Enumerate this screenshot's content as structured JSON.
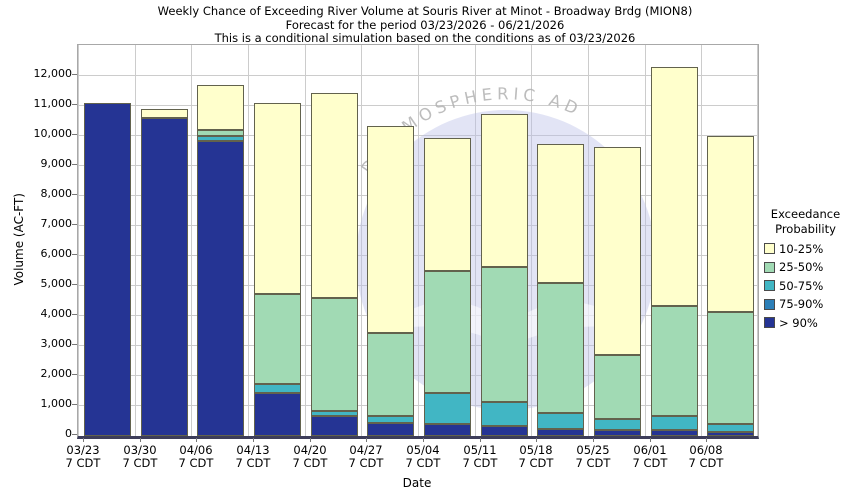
{
  "watermark": {
    "arc_text": "D ATMOSPHERIC AD",
    "circle_color": "#b9bfe8",
    "text_color": "#b2b2b2"
  },
  "chart_data": {
    "type": "bar",
    "stacked": true,
    "title": "Weekly Chance of Exceeding River Volume at Souris River at Minot - Broadway Brdg (MION8)",
    "subtitle": "Forecast for the period 03/23/2026 - 06/21/2026",
    "note": "This is a conditional simulation based on the conditions as of 03/23/2026",
    "xlabel": "Date",
    "ylabel": "Volume (AC-FT)",
    "ylim": [
      0,
      13030
    ],
    "ytick_step": 1000,
    "ytick_max": 12000,
    "grid": true,
    "legend_title_lines": [
      "Exceedance",
      "Probability"
    ],
    "legend_position": "right",
    "categories": [
      "03/23",
      "03/30",
      "04/06",
      "04/13",
      "04/20",
      "04/27",
      "05/04",
      "05/11",
      "05/18",
      "05/25",
      "06/01",
      "06/08"
    ],
    "category_sublabel": "7 CDT",
    "series": [
      {
        "name": "> 90%",
        "color": "#253494",
        "values": [
          11100,
          10600,
          9850,
          1450,
          680,
          420,
          400,
          320,
          230,
          190,
          200,
          120
        ]
      },
      {
        "name": "75-90%",
        "color": "#2c7fb8",
        "values": [
          0,
          0,
          0,
          0,
          0,
          0,
          0,
          0,
          0,
          0,
          0,
          0
        ]
      },
      {
        "name": "50-75%",
        "color": "#41b6c4",
        "values": [
          0,
          0,
          150,
          300,
          140,
          250,
          1050,
          830,
          530,
          390,
          480,
          280
        ]
      },
      {
        "name": "25-50%",
        "color": "#a1dab4",
        "values": [
          0,
          0,
          200,
          3000,
          3780,
          2780,
          4050,
          4500,
          4340,
          2120,
          3670,
          3750
        ]
      },
      {
        "name": "10-25%",
        "color": "#ffffcc",
        "values": [
          0,
          300,
          1500,
          6350,
          6850,
          6900,
          4450,
          5100,
          4650,
          6950,
          7950,
          5850
        ]
      }
    ],
    "bar_totals": [
      11100,
      10900,
      11700,
      11100,
      11450,
      10350,
      9950,
      10750,
      9750,
      9650,
      12300,
      10000
    ]
  }
}
